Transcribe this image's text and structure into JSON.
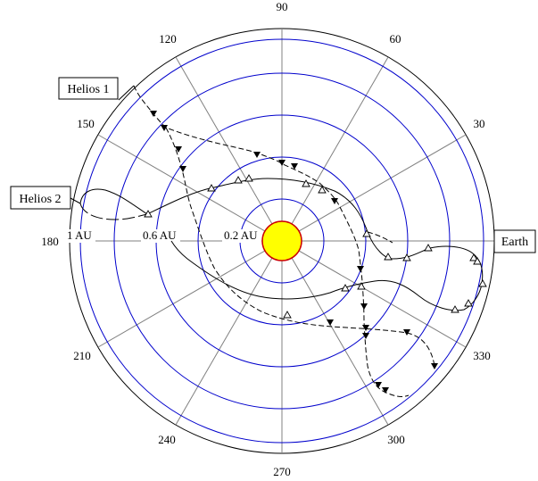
{
  "angle_labels": [
    "90",
    "60",
    "30",
    "330",
    "300",
    "270",
    "240",
    "210",
    "180",
    "150",
    "120"
  ],
  "radius_labels": [
    "1 AU",
    "0.6 AU",
    "0.2 AU"
  ],
  "callouts": {
    "helios1": "Helios 1",
    "helios2": "Helios 2",
    "earth": "Earth"
  },
  "colors": {
    "rings": "#0000cc",
    "spokes": "#808080",
    "sun_fill": "#ffff00",
    "sun_stroke": "#cc0000",
    "trajectory": "#000000"
  }
}
